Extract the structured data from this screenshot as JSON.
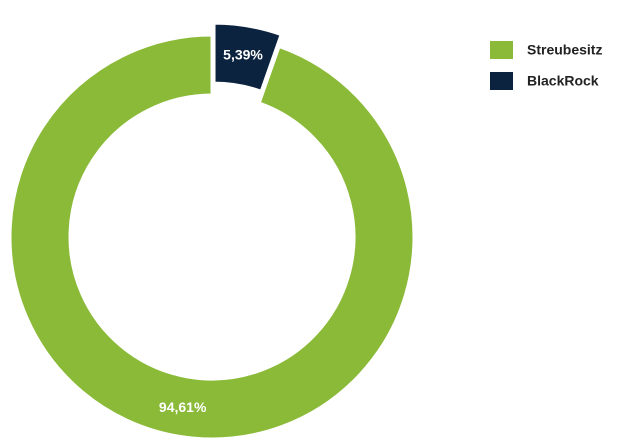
{
  "chart_data": {
    "type": "pie",
    "categories": [
      "Streubesitz",
      "BlackRock"
    ],
    "values": [
      94.61,
      5.39
    ],
    "value_labels": [
      "94,61%",
      "5,39%"
    ],
    "colors": [
      "#8aba37",
      "#0c2340"
    ],
    "exploded": [
      false,
      true
    ],
    "legend": "top-right"
  }
}
